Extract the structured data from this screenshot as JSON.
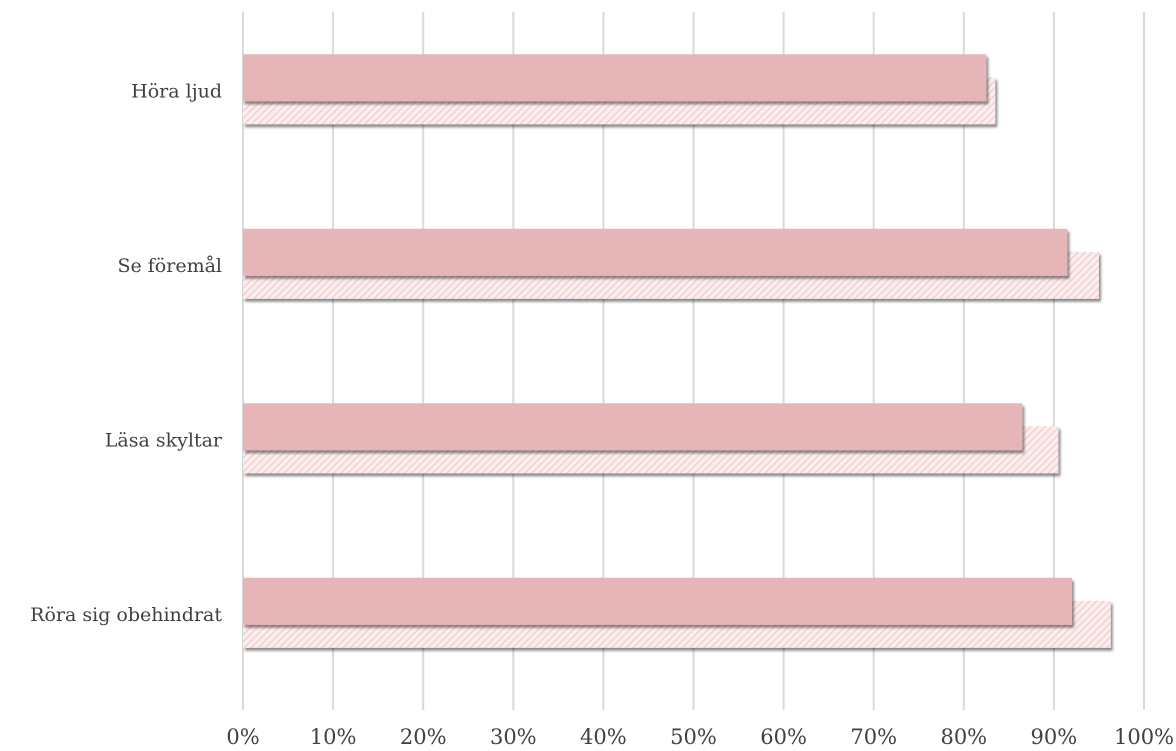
{
  "chart_data": {
    "type": "bar",
    "orientation": "horizontal",
    "categories": [
      "Höra ljud",
      "Se föremål",
      "Läsa skyltar",
      "Röra sig obehindrat"
    ],
    "series": [
      {
        "values": [
          82.5,
          91.5,
          86.5,
          92.0
        ],
        "color": "#e6b5b7",
        "fill": "solid"
      },
      {
        "values": [
          83.5,
          95.0,
          90.5,
          96.3
        ],
        "color": "#f2d3d4",
        "fill": "hatched"
      }
    ],
    "xlim": [
      0,
      100
    ],
    "x_ticks": [
      "0%",
      "10%",
      "20%",
      "30%",
      "40%",
      "50%",
      "60%",
      "70%",
      "80%",
      "90%",
      "100%"
    ],
    "grid": "vertical",
    "legend": "none",
    "title": "",
    "xlabel": "",
    "ylabel": ""
  }
}
